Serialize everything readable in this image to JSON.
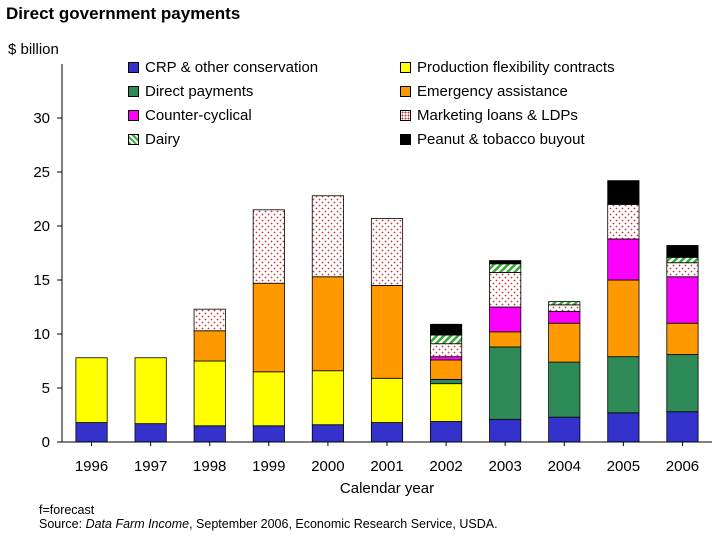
{
  "page": {
    "title": "Direct government payments",
    "unit_label": "$ billion",
    "footnote": "f=forecast",
    "source_prefix": "Source: ",
    "source_italic": "Data Farm Income",
    "source_suffix": ", September 2006, Economic Research Service, USDA."
  },
  "chart_data": {
    "type": "bar",
    "stacked": true,
    "title": "Direct government payments",
    "xlabel": "Calendar year",
    "ylabel": "$ billion",
    "ylim": [
      0,
      35
    ],
    "yticks": [
      0,
      5,
      10,
      15,
      20,
      25,
      30
    ],
    "categories": [
      "1996",
      "1997",
      "1998",
      "1999",
      "2000",
      "2001",
      "2002",
      "2003",
      "2004",
      "2005",
      "2006"
    ],
    "series": [
      {
        "name": "CRP & other conservation",
        "color": "#3333cc",
        "pattern": "solid",
        "values": [
          1.8,
          1.7,
          1.5,
          1.5,
          1.6,
          1.8,
          1.9,
          2.1,
          2.3,
          2.7,
          2.8
        ]
      },
      {
        "name": "Production flexibility contracts",
        "color": "#ffff00",
        "pattern": "solid",
        "values": [
          6.0,
          6.1,
          6.0,
          5.0,
          5.0,
          4.1,
          3.5,
          0,
          0,
          0,
          0
        ]
      },
      {
        "name": "Direct payments",
        "color": "#2e8b57",
        "pattern": "solid",
        "values": [
          0,
          0,
          0,
          0,
          0,
          0,
          0.4,
          6.7,
          5.1,
          5.2,
          5.3
        ]
      },
      {
        "name": "Emergency assistance",
        "color": "#ff9900",
        "pattern": "solid",
        "values": [
          0,
          0,
          2.8,
          8.2,
          8.7,
          8.6,
          1.8,
          1.4,
          3.6,
          7.1,
          2.9
        ]
      },
      {
        "name": "Counter-cyclical",
        "color": "#ff00ff",
        "pattern": "solid",
        "values": [
          0,
          0,
          0,
          0,
          0,
          0,
          0.3,
          2.3,
          1.1,
          3.8,
          4.3
        ]
      },
      {
        "name": "Marketing loans & LDPs",
        "color": "#ffffff",
        "pattern": "dots",
        "values": [
          0,
          0,
          2.0,
          6.8,
          7.5,
          6.2,
          1.2,
          3.2,
          0.6,
          3.2,
          1.3
        ]
      },
      {
        "name": "Dairy",
        "color": "#66cc66",
        "pattern": "hatch",
        "values": [
          0,
          0,
          0,
          0,
          0,
          0,
          0.8,
          0.8,
          0.3,
          0,
          0.5
        ]
      },
      {
        "name": "Peanut & tobacco buyout",
        "color": "#000000",
        "pattern": "solid",
        "values": [
          0,
          0,
          0,
          0,
          0,
          0,
          1.0,
          0.3,
          0,
          2.2,
          1.1
        ]
      }
    ]
  }
}
